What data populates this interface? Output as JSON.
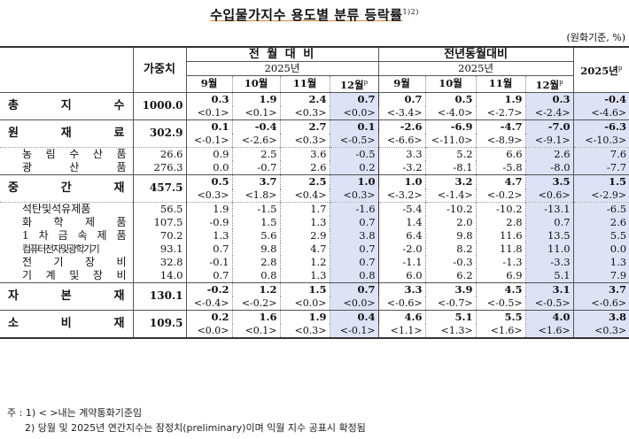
{
  "title": "수입물가지수 용도별 분류 등락률",
  "title_sup": "1)2)",
  "unit": "(원화기준, %)",
  "header": {
    "weight": "가중치",
    "mom_group": "전 월 대 비",
    "yoy_group": "전년동월대비",
    "year": "2025년",
    "annual": "2025년",
    "annual_sup": "p",
    "months": [
      "9월",
      "10월",
      "11월",
      "12월"
    ],
    "prelim_sup": "p"
  },
  "rows": [
    {
      "label": "총 지 수",
      "level": "main",
      "weight": "1000.0",
      "mom": [
        "0.3",
        "1.9",
        "2.4",
        "0.7"
      ],
      "mom_c": [
        "<0.1>",
        "<0.1>",
        "<0.3>",
        "<0.0>"
      ],
      "yoy": [
        "0.7",
        "0.5",
        "1.9",
        "0.3"
      ],
      "yoy_c": [
        "<-3.4>",
        "<-4.0>",
        "<-2.7>",
        "<-2.4>"
      ],
      "annual": "-0.4",
      "annual_c": "<-4.6>"
    },
    {
      "label": "원 재 료",
      "level": "main",
      "weight": "302.9",
      "mom": [
        "0.1",
        "-0.4",
        "2.7",
        "0.1"
      ],
      "mom_c": [
        "<-0.1>",
        "<-2.6>",
        "<0.3>",
        "<-0.5>"
      ],
      "yoy": [
        "-2.6",
        "-6.9",
        "-4.7",
        "-7.0"
      ],
      "yoy_c": [
        "<-6.6>",
        "<-11.0>",
        "<-8.9>",
        "<-9.1>"
      ],
      "annual": "-6.3",
      "annual_c": "<-10.3>"
    },
    {
      "label": "농 림 수 산 품",
      "level": "sub",
      "weight": "26.6",
      "mom": [
        "0.9",
        "2.5",
        "3.6",
        "-0.5"
      ],
      "yoy": [
        "3.3",
        "5.2",
        "6.6",
        "2.6"
      ],
      "annual": "7.6"
    },
    {
      "label": "광 산 품",
      "level": "sub",
      "weight": "276.3",
      "mom": [
        "0.0",
        "-0.7",
        "2.6",
        "0.2"
      ],
      "yoy": [
        "-3.2",
        "-8.1",
        "-5.8",
        "-8.0"
      ],
      "annual": "-7.7"
    },
    {
      "label": "중 간 재",
      "level": "main",
      "weight": "457.5",
      "mom": [
        "0.5",
        "3.7",
        "2.5",
        "1.0"
      ],
      "mom_c": [
        "<0.3>",
        "<1.8>",
        "<0.4>",
        "<0.3>"
      ],
      "yoy": [
        "1.0",
        "3.2",
        "4.7",
        "3.5"
      ],
      "yoy_c": [
        "<-3.2>",
        "<-1.4>",
        "<-0.2>",
        "<0.6>"
      ],
      "annual": "1.5",
      "annual_c": "<-2.9>"
    },
    {
      "label": "석탄및석유제품",
      "level": "sub",
      "weight": "56.5",
      "mom": [
        "1.9",
        "-1.5",
        "1.7",
        "-1.6"
      ],
      "yoy": [
        "-5.4",
        "-10.2",
        "-10.2",
        "-13.1"
      ],
      "annual": "-6.5"
    },
    {
      "label": "화 학 제 품",
      "level": "sub",
      "weight": "107.5",
      "mom": [
        "-0.9",
        "1.5",
        "1.3",
        "0.7"
      ],
      "yoy": [
        "1.4",
        "2.0",
        "2.8",
        "0.7"
      ],
      "annual": "2.6"
    },
    {
      "label": "1 차 금 속 제 품",
      "level": "sub",
      "weight": "70.2",
      "mom": [
        "1.3",
        "5.6",
        "2.9",
        "3.8"
      ],
      "yoy": [
        "6.4",
        "9.8",
        "11.6",
        "13.5"
      ],
      "annual": "5.5"
    },
    {
      "label": "컴퓨터전자및광학기기",
      "level": "sub",
      "weight": "93.1",
      "mom": [
        "0.7",
        "9.8",
        "4.7",
        "0.7"
      ],
      "yoy": [
        "-2.0",
        "8.2",
        "11.8",
        "11.0"
      ],
      "annual": "0.0"
    },
    {
      "label": "전 기 장 비",
      "level": "sub",
      "weight": "32.8",
      "mom": [
        "-0.1",
        "2.8",
        "1.2",
        "0.7"
      ],
      "yoy": [
        "-1.1",
        "-0.3",
        "-1.3",
        "-3.3"
      ],
      "annual": "1.3"
    },
    {
      "label": "기 계 및 장 비",
      "level": "sub",
      "weight": "14.0",
      "mom": [
        "0.7",
        "0.8",
        "1.3",
        "0.8"
      ],
      "yoy": [
        "6.0",
        "6.2",
        "6.9",
        "5.1"
      ],
      "annual": "7.9"
    },
    {
      "label": "자 본 재",
      "level": "main",
      "weight": "130.1",
      "mom": [
        "-0.2",
        "1.2",
        "1.5",
        "0.7"
      ],
      "mom_c": [
        "<-0.4>",
        "<-0.2>",
        "<0.0>",
        "<0.0>"
      ],
      "yoy": [
        "3.3",
        "3.9",
        "4.5",
        "3.1"
      ],
      "yoy_c": [
        "<-0.6>",
        "<-0.7>",
        "<-0.5>",
        "<-0.5>"
      ],
      "annual": "3.7",
      "annual_c": "<-0.6>"
    },
    {
      "label": "소 비 재",
      "level": "main",
      "weight": "109.5",
      "mom": [
        "0.2",
        "1.6",
        "1.9",
        "0.4"
      ],
      "mom_c": [
        "<0.0>",
        "<0.1>",
        "<0.3>",
        "<-0.1>"
      ],
      "yoy": [
        "4.6",
        "5.1",
        "5.5",
        "4.0"
      ],
      "yoy_c": [
        "<1.1>",
        "<1.3>",
        "<1.6>",
        "<1.6>"
      ],
      "annual": "3.8",
      "annual_c": "<0.3>"
    }
  ],
  "notes": {
    "n1": "주 : 1) < >내는 계약통화기준임",
    "n2": "2) 당월 및 2025년 연간지수는 잠정치(preliminary)이며 익월 지수 공표시 확정됨"
  },
  "colors": {
    "highlight": "#dde3f5",
    "underline": "#d08a3a"
  }
}
